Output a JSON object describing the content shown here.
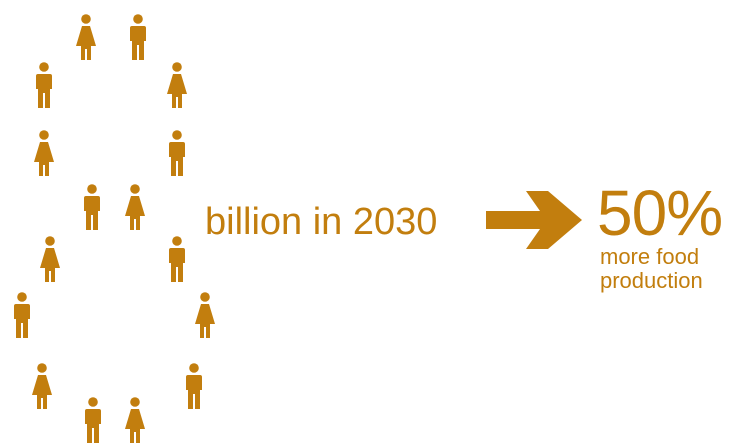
{
  "colors": {
    "accent": "#C27E0E",
    "background": "#FFFFFF"
  },
  "figures": [
    {
      "type": "woman-icon"
    },
    {
      "type": "man-icon"
    },
    {
      "type": "man-icon"
    },
    {
      "type": "woman-icon"
    },
    {
      "type": "woman-icon"
    },
    {
      "type": "man-icon"
    },
    {
      "type": "man-icon"
    },
    {
      "type": "woman-icon"
    },
    {
      "type": "woman-icon"
    },
    {
      "type": "man-icon"
    },
    {
      "type": "man-icon"
    },
    {
      "type": "woman-icon"
    },
    {
      "type": "woman-icon"
    },
    {
      "type": "man-icon"
    },
    {
      "type": "man-icon"
    },
    {
      "type": "woman-icon"
    }
  ],
  "caption": "billion in 2030",
  "arrow_icon": "arrow-right-icon",
  "result": {
    "percent": "50%",
    "line1": "more food",
    "line2": "production"
  }
}
